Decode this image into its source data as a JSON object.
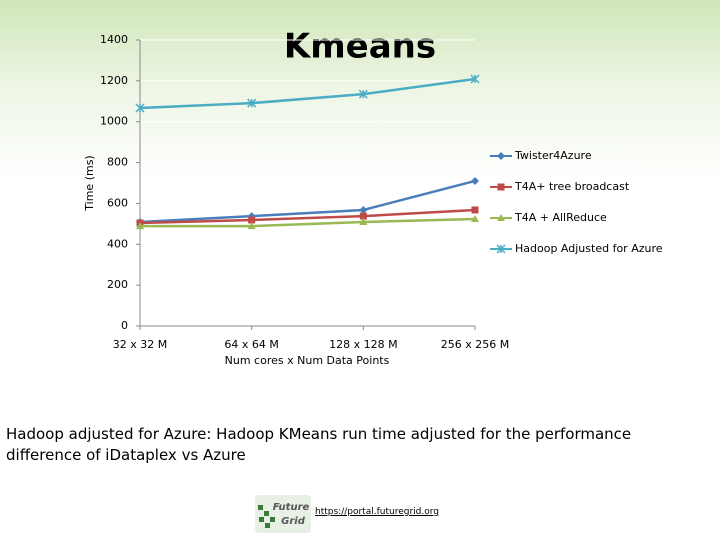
{
  "chart_data": {
    "type": "line",
    "title": "Kmeans",
    "y_label": "Time (ms)",
    "x_label": "Num cores x Num Data Points",
    "categories": [
      "32 x 32 M",
      "64 x 64 M",
      "128 x 128 M",
      "256 x 256 M"
    ],
    "series": [
      {
        "name": "Twister4Azure",
        "color": "#4a7ebb",
        "marker": "diamond",
        "values": [
          509,
          538,
          568,
          710
        ]
      },
      {
        "name": "T4A+ tree broadcast",
        "color": "#be4b48",
        "marker": "square",
        "values": [
          504,
          519,
          538,
          568
        ]
      },
      {
        "name": "T4A + AllReduce",
        "color": "#98b954",
        "marker": "triangle",
        "values": [
          489,
          489,
          509,
          524
        ]
      },
      {
        "name": "Hadoop Adjusted for Azure",
        "color": "#4bacc6",
        "marker": "x",
        "values": [
          1067,
          1091,
          1135,
          1209
        ]
      }
    ],
    "ylim": [
      0,
      1400
    ],
    "yticks": [
      0,
      200,
      400,
      600,
      800,
      1000,
      1200,
      1400
    ],
    "grid": true,
    "legend": "right"
  },
  "caption": "Hadoop adjusted for Azure: Hadoop KMeans run time adjusted for the performance difference of iDataplex vs Azure",
  "footer": {
    "logo": [
      "Future",
      "Grid"
    ],
    "url": "https://portal.futuregrid.org"
  }
}
